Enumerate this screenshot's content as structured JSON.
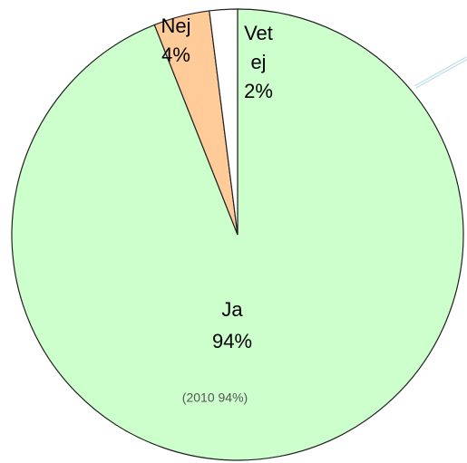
{
  "chart_data": {
    "type": "pie",
    "categories": [
      "Ja",
      "Nej",
      "Vet ej"
    ],
    "values": [
      94,
      4,
      2
    ],
    "value_labels": [
      "94%",
      "4%",
      "2%"
    ],
    "colors": [
      "#ccffcc",
      "#ffcc99",
      "#ffffff"
    ],
    "annotation": "(2010 94%)"
  }
}
